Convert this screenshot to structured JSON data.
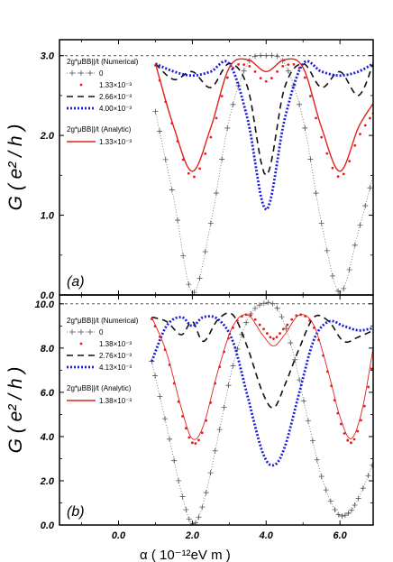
{
  "chart_data": [
    {
      "type": "line",
      "panel_label": "(a)",
      "ylabel": "G ( e² / h )",
      "xlim": [
        -1.6,
        6.9
      ],
      "ylim": [
        0,
        3.2
      ],
      "yticks": [
        "0.0",
        "1.0",
        "2.0",
        "3.0"
      ],
      "ytick_values": [
        0,
        1,
        2,
        3
      ],
      "reference_line": 3.0,
      "legend": {
        "numerical_header": "2g*μBB||/t (Numerical)",
        "analytic_header": "2g*μBB||/t (Analytic)"
      },
      "series": [
        {
          "name": "0",
          "style": "plus-dotted",
          "color": "#555555",
          "x": [
            1.0,
            1.5,
            2.0,
            2.5,
            3.0,
            3.5,
            4.0,
            4.5,
            5.0,
            5.5,
            6.0,
            6.5,
            6.9
          ],
          "y": [
            2.3,
            1.2,
            0.03,
            0.9,
            2.2,
            2.9,
            3.0,
            2.9,
            2.2,
            0.9,
            0.03,
            0.8,
            1.5
          ]
        },
        {
          "name": "1.33×10⁻³",
          "style": "red-dots",
          "color": "#e0201c",
          "x": [
            1.0,
            1.5,
            2.0,
            2.5,
            3.0,
            3.5,
            4.0,
            4.5,
            5.0,
            5.5,
            6.0,
            6.5,
            6.9
          ],
          "y": [
            2.9,
            2.1,
            1.5,
            2.0,
            2.8,
            2.9,
            2.7,
            2.9,
            2.8,
            2.0,
            1.5,
            2.0,
            2.3
          ]
        },
        {
          "name": "2.66×10⁻³",
          "style": "black-dash",
          "color": "#111111",
          "x": [
            1.0,
            1.5,
            2.0,
            2.5,
            3.0,
            3.5,
            4.0,
            4.5,
            5.0,
            5.5,
            6.0,
            6.5,
            6.9
          ],
          "y": [
            2.9,
            2.7,
            2.8,
            2.6,
            2.9,
            2.6,
            1.5,
            2.6,
            2.9,
            2.6,
            2.8,
            2.5,
            2.9
          ]
        },
        {
          "name": "4.00×10⁻³",
          "style": "blue-dots",
          "color": "#1c1cd6",
          "x": [
            1.0,
            1.5,
            2.0,
            2.5,
            3.0,
            3.5,
            4.0,
            4.5,
            5.0,
            5.5,
            6.0,
            6.5,
            6.9
          ],
          "y": [
            2.9,
            2.8,
            2.75,
            2.8,
            2.9,
            2.2,
            1.07,
            2.2,
            2.9,
            2.8,
            2.75,
            2.8,
            2.9
          ]
        },
        {
          "name": "1.33×10⁻³",
          "style": "red-line",
          "color": "#e0201c",
          "analytic": true,
          "x": [
            1.0,
            1.5,
            2.0,
            2.5,
            3.0,
            3.5,
            4.0,
            4.5,
            5.0,
            5.5,
            6.0,
            6.5,
            6.9
          ],
          "y": [
            2.9,
            2.1,
            1.55,
            2.1,
            2.85,
            2.95,
            2.8,
            2.95,
            2.85,
            2.1,
            1.55,
            2.1,
            2.4
          ]
        }
      ]
    },
    {
      "type": "line",
      "panel_label": "(b)",
      "ylabel": "G ( e² / h )",
      "xlabel": "α  ( 10⁻¹²eV m )",
      "xlim": [
        -1.6,
        6.9
      ],
      "ylim": [
        0,
        10.4
      ],
      "xticks": [
        "0.0",
        "2.0",
        "4.0",
        "6.0"
      ],
      "xtick_values": [
        0,
        2,
        4,
        6
      ],
      "yticks": [
        "0.0",
        "2.0",
        "4.0",
        "6.0",
        "8.0",
        "10.0"
      ],
      "ytick_values": [
        0,
        2,
        4,
        6,
        8,
        10
      ],
      "reference_line": 10.0,
      "legend": {
        "numerical_header": "2g*μBB||/t (Numerical)",
        "analytic_header": "2g*μBB||/t (Analytic)"
      },
      "series": [
        {
          "name": "0",
          "style": "plus-dotted",
          "color": "#555555",
          "x": [
            0.9,
            1.3,
            1.7,
            2.0,
            2.3,
            2.7,
            3.1,
            3.5,
            3.9,
            4.3,
            4.7,
            5.1,
            5.5,
            5.9,
            6.2,
            6.5,
            6.9
          ],
          "y": [
            7.4,
            4.5,
            1.5,
            0.05,
            1.0,
            4.0,
            7.2,
            9.3,
            10.0,
            9.8,
            8.0,
            5.0,
            2.2,
            0.6,
            0.5,
            1.2,
            2.8
          ]
        },
        {
          "name": "1.38×10⁻³",
          "style": "red-dots",
          "color": "#e0201c",
          "x": [
            0.9,
            1.3,
            1.7,
            2.0,
            2.3,
            2.7,
            3.1,
            3.5,
            3.9,
            4.2,
            4.5,
            4.9,
            5.3,
            5.7,
            6.0,
            6.3,
            6.6,
            6.9
          ],
          "y": [
            9.4,
            7.8,
            5.2,
            3.8,
            4.4,
            7.0,
            9.0,
            9.6,
            9.0,
            8.5,
            9.0,
            9.6,
            9.0,
            6.8,
            4.8,
            3.8,
            5.0,
            7.5
          ]
        },
        {
          "name": "2.76×10⁻³",
          "style": "black-dash",
          "color": "#111111",
          "x": [
            0.9,
            1.3,
            1.7,
            2.0,
            2.3,
            2.7,
            3.1,
            3.5,
            3.9,
            4.2,
            4.5,
            4.9,
            5.3,
            5.7,
            6.1,
            6.5,
            6.9
          ],
          "y": [
            9.4,
            9.2,
            8.6,
            9.2,
            8.3,
            9.3,
            9.5,
            8.0,
            6.0,
            5.3,
            6.3,
            8.0,
            9.4,
            9.2,
            8.3,
            8.5,
            8.8
          ]
        },
        {
          "name": "4.13×10⁻³",
          "style": "blue-dots",
          "color": "#1c1cd6",
          "x": [
            0.9,
            1.3,
            1.7,
            2.0,
            2.3,
            2.7,
            3.1,
            3.5,
            3.9,
            4.2,
            4.5,
            4.9,
            5.3,
            5.7,
            6.1,
            6.5,
            6.9
          ],
          "y": [
            7.4,
            9.0,
            9.4,
            9.0,
            9.4,
            9.3,
            8.3,
            5.8,
            3.3,
            2.7,
            3.5,
            6.0,
            8.4,
            9.2,
            9.0,
            8.8,
            8.9
          ]
        },
        {
          "name": "1.38×10⁻³",
          "style": "red-line",
          "color": "#e0201c",
          "analytic": true,
          "x": [
            0.9,
            1.3,
            1.7,
            2.0,
            2.3,
            2.7,
            3.1,
            3.5,
            3.9,
            4.2,
            4.5,
            4.9,
            5.3,
            5.7,
            6.0,
            6.3,
            6.6,
            6.9
          ],
          "y": [
            9.4,
            7.8,
            5.3,
            3.9,
            4.5,
            7.0,
            9.0,
            9.5,
            8.6,
            8.1,
            8.6,
            9.5,
            9.0,
            6.8,
            4.9,
            3.9,
            5.2,
            8.0
          ]
        }
      ]
    }
  ]
}
